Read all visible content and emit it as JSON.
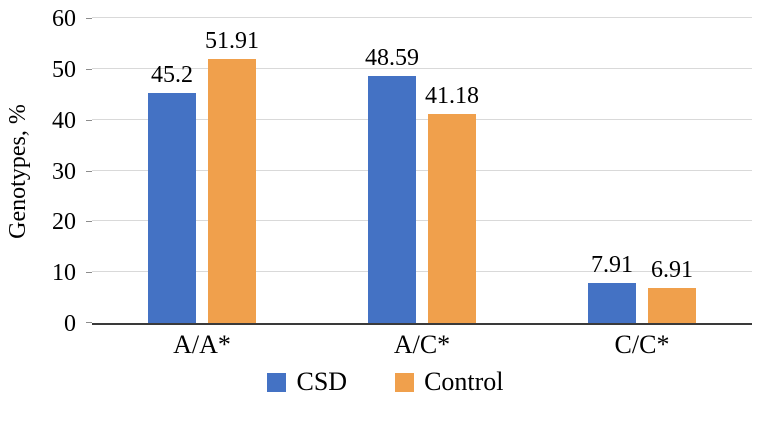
{
  "chart_data": {
    "type": "bar",
    "title": "",
    "categories": [
      "A/A*",
      "A/C*",
      "C/C*"
    ],
    "series": [
      {
        "name": "CSD",
        "color": "#4472C4",
        "values": [
          45.2,
          48.59,
          7.91
        ]
      },
      {
        "name": "Control",
        "color": "#F0A04C",
        "values": [
          51.91,
          41.18,
          6.91
        ]
      }
    ],
    "xlabel": "",
    "ylabel": "Genotypes, %",
    "ylim": [
      0,
      60
    ],
    "ytick_step": 10,
    "grid": true,
    "legend_position": "bottom"
  },
  "colors": {
    "gridline": "#d9d9d9",
    "axis_line": "#3a3a3a",
    "tick_mark": "#8c8c8c",
    "text": "#000000"
  }
}
